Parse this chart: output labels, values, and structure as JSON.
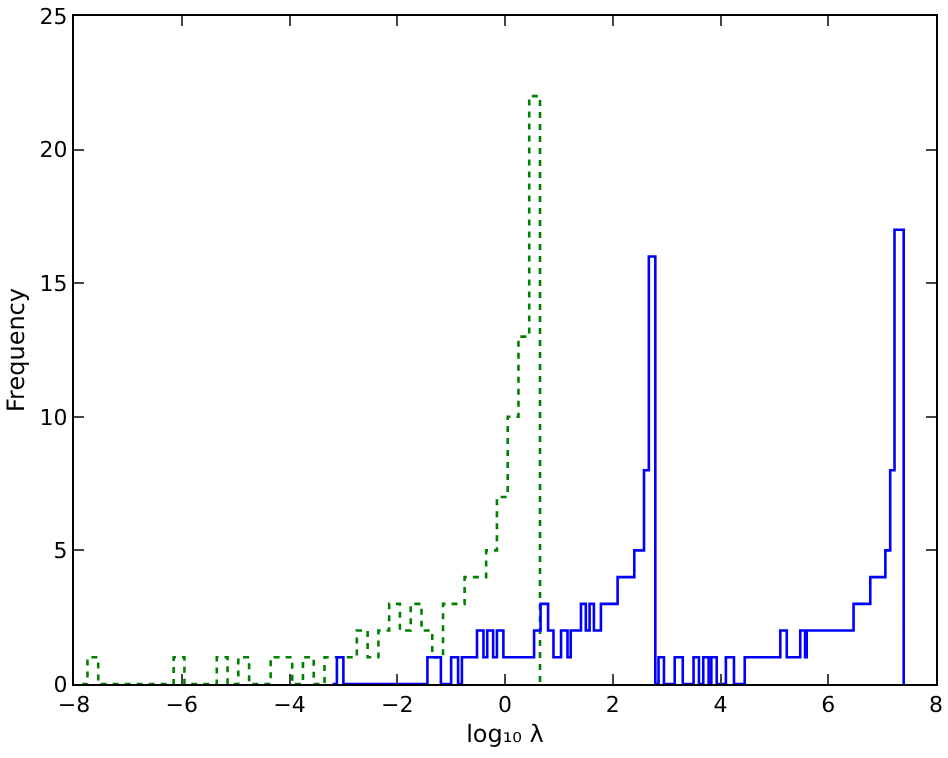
{
  "chart_data": {
    "type": "step",
    "xlabel": "log₁₀ λ",
    "ylabel": "Frequency",
    "xlim": [
      -8,
      8
    ],
    "xticks": [
      {
        "value": -8,
        "label": "−8"
      },
      {
        "value": -6,
        "label": "−6"
      },
      {
        "value": -4,
        "label": "−4"
      },
      {
        "value": -2,
        "label": "−2"
      },
      0,
      2,
      4,
      6,
      8
    ],
    "ylim": [
      0,
      25
    ],
    "yticks": [
      0,
      5,
      10,
      15,
      20,
      25
    ],
    "grid": false,
    "marker": "none",
    "series": [
      {
        "color": "#008000",
        "line_style": "dotted",
        "x": [
          -7.85,
          -7.75,
          -7.55,
          -7.35,
          -7.15,
          -6.95,
          -6.75,
          -6.55,
          -6.35,
          -6.15,
          -5.95,
          -5.75,
          -5.55,
          -5.35,
          -5.15,
          -4.95,
          -4.75,
          -4.55,
          -4.35,
          -4.15,
          -3.95,
          -3.75,
          -3.55,
          -3.35,
          -3.15,
          -2.95,
          -2.75,
          -2.55,
          -2.35,
          -2.15,
          -1.95,
          -1.75,
          -1.55,
          -1.35,
          -1.15,
          -0.95,
          -0.75,
          -0.55,
          -0.35,
          -0.15,
          0.05,
          0.25,
          0.45,
          0.65
        ],
        "values": [
          0,
          1,
          0,
          0,
          0,
          0,
          0,
          0,
          0,
          1,
          0,
          0,
          0,
          1,
          0,
          1,
          0,
          0,
          1,
          1,
          0,
          1,
          0,
          1,
          1,
          1,
          2,
          1,
          2,
          3,
          2,
          3,
          2,
          1,
          3,
          3,
          4,
          4,
          5,
          7,
          10,
          13,
          22,
          0
        ]
      },
      {
        "color": "#0000ff",
        "line_style": "solid",
        "x": [
          -3.2,
          -3.12,
          -3.0,
          -1.44,
          -1.19,
          -1.0,
          -0.87,
          -0.8,
          -0.52,
          -0.4,
          -0.33,
          -0.22,
          -0.15,
          -0.03,
          0.54,
          0.66,
          0.8,
          0.9,
          1.04,
          1.16,
          1.22,
          1.41,
          1.5,
          1.57,
          1.65,
          1.78,
          2.09,
          2.4,
          2.58,
          2.67,
          2.79,
          2.85,
          2.95,
          3.15,
          3.3,
          3.5,
          3.6,
          3.68,
          3.78,
          3.83,
          3.93,
          4.1,
          4.25,
          4.45,
          5.11,
          5.23,
          5.48,
          5.57,
          5.6,
          6.47,
          6.78,
          7.06,
          7.15,
          7.23,
          7.4
        ],
        "values": [
          0,
          1,
          0,
          1,
          0,
          1,
          0,
          1,
          2,
          1,
          2,
          1,
          2,
          1,
          2,
          3,
          2,
          1,
          2,
          1,
          2,
          3,
          2,
          3,
          2,
          3,
          4,
          5,
          8,
          16,
          0,
          1,
          0,
          1,
          0,
          1,
          0,
          1,
          0,
          1,
          0,
          1,
          0,
          1,
          2,
          1,
          2,
          1,
          2,
          3,
          4,
          5,
          8,
          17,
          0
        ]
      }
    ]
  }
}
